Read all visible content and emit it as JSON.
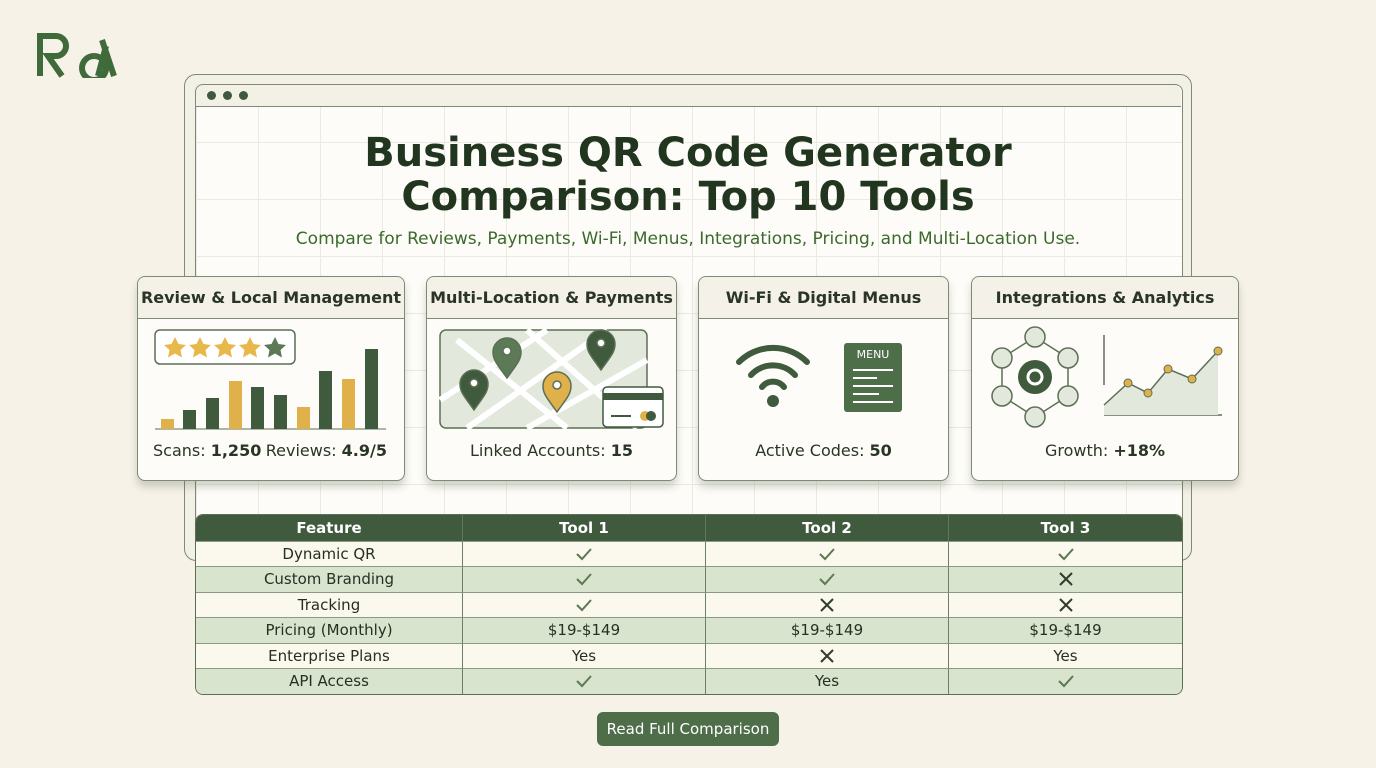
{
  "header": {
    "title_lines": [
      "Business QR Code Generator",
      "Comparison: Top 10 Tools"
    ],
    "subtitle": "Compare for Reviews, Payments, Wi-Fi, Menus, Integrations, Pricing, and Multi-Location Use."
  },
  "cards": [
    {
      "title": "Review & Local Management",
      "stats": [
        {
          "label": "Scans:",
          "value": "1,250"
        },
        {
          "label": "Reviews:",
          "value": "4.9/5"
        }
      ]
    },
    {
      "title": "Multi-Location & Payments",
      "stats": [
        {
          "label": "Linked Accounts:",
          "value": "15"
        }
      ]
    },
    {
      "title": "Wi-Fi & Digital Menus",
      "icon_label": "MENU",
      "stats": [
        {
          "label": "Active Codes:",
          "value": "50"
        }
      ]
    },
    {
      "title": "Integrations & Analytics",
      "stats": [
        {
          "label": "Growth:",
          "value": "+18%"
        }
      ]
    }
  ],
  "table": {
    "columns": [
      "Feature",
      "Tool 1",
      "Tool 2",
      "Tool 3"
    ],
    "rows": [
      [
        "Dynamic QR",
        true,
        true,
        true
      ],
      [
        "Custom Branding",
        true,
        true,
        false
      ],
      [
        "Tracking",
        true,
        false,
        false
      ],
      [
        "Pricing (Monthly)",
        "$19-$149",
        "$19-$149",
        "$19-$149"
      ],
      [
        "Enterprise Plans",
        "Yes",
        false,
        "Yes"
      ],
      [
        "API Access",
        true,
        "Yes",
        true
      ]
    ]
  },
  "button": "Read Full Comparison"
}
